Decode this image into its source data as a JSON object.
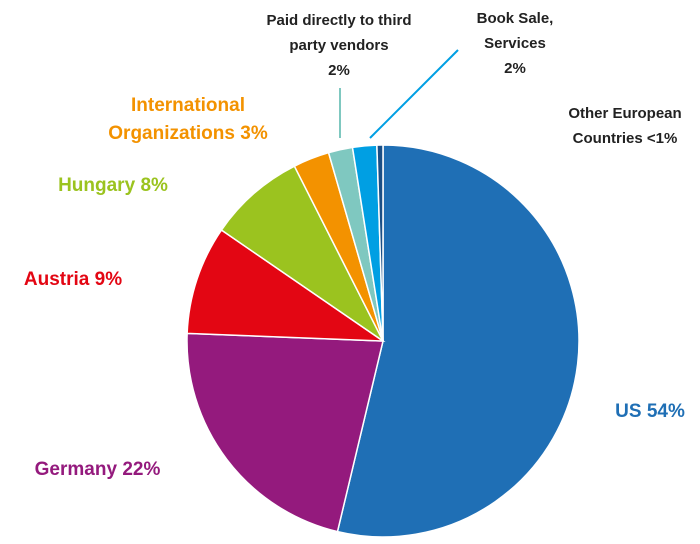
{
  "chart_data": {
    "type": "pie",
    "categories": [
      "US",
      "Germany",
      "Austria",
      "Hungary",
      "International Organizations",
      "Paid directly to third party vendors",
      "Book Sale, Services",
      "Other European Countries"
    ],
    "values": [
      54,
      22,
      9,
      8,
      3,
      2,
      2,
      0.5
    ],
    "value_labels": [
      "54%",
      "22%",
      "9%",
      "8%",
      "3%",
      "2%",
      "2%",
      "<1%"
    ],
    "colors": [
      "#1f6fb5",
      "#941a7d",
      "#e30613",
      "#9bc31f",
      "#f39200",
      "#7fc8c0",
      "#009fe3",
      "#1a4f86"
    ]
  }
}
